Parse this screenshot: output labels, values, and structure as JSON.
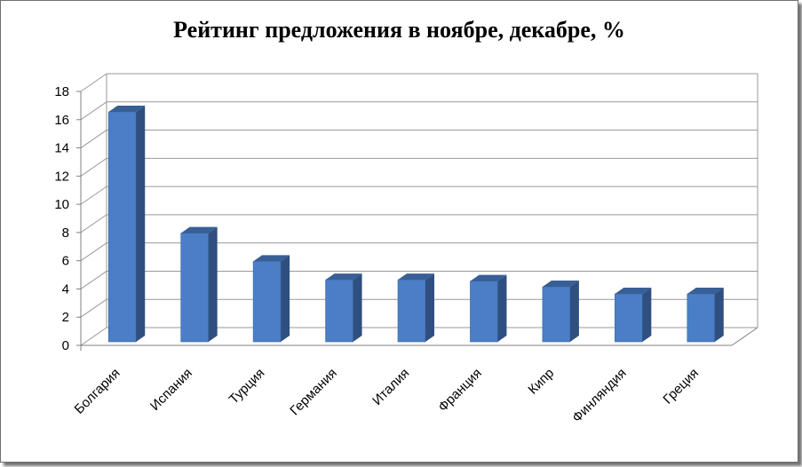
{
  "chart_data": {
    "type": "bar",
    "title": "Рейтинг предложения в ноябре, декабре, %",
    "categories": [
      "Болгария",
      "Испания",
      "Турция",
      "Германия",
      "Италия",
      "Франция",
      "Кипр",
      "Финляндия",
      "Греция"
    ],
    "values": [
      16.3,
      7.7,
      5.7,
      4.4,
      4.4,
      4.3,
      3.9,
      3.4,
      3.4
    ],
    "yticks": [
      "0",
      "2",
      "4",
      "6",
      "8",
      "10",
      "12",
      "14",
      "16",
      "18"
    ],
    "ylim": [
      0,
      18
    ],
    "grid": true,
    "legend": "none",
    "colors": {
      "bar_front": "#4a7ec6",
      "bar_side": "#2f4f80",
      "bar_top": "#385f96",
      "grid": "#9a9a9a",
      "axis": "#808080"
    }
  }
}
